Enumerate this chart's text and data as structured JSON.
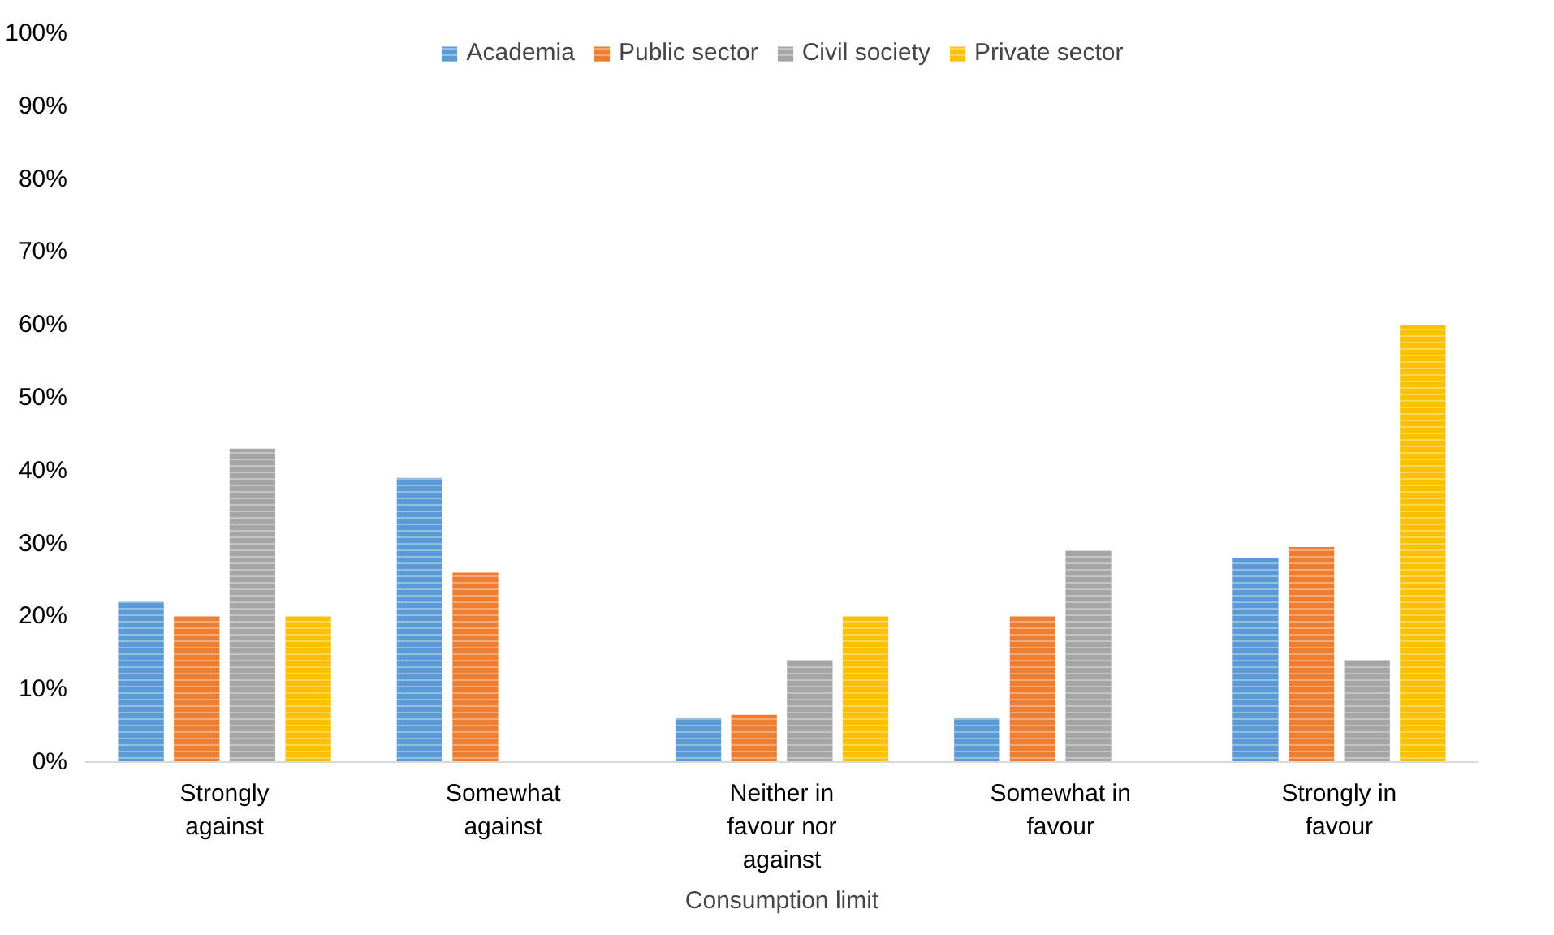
{
  "chart_data": {
    "type": "bar",
    "xlabel": "Consumption limit",
    "categories": [
      "Strongly against",
      "Somewhat against",
      "Neither in favour nor against",
      "Somewhat in favour",
      "Strongly in favour"
    ],
    "series": [
      {
        "name": "Academia",
        "color": "#5b9bd5",
        "values": [
          22,
          39,
          6,
          6,
          28
        ]
      },
      {
        "name": "Public sector",
        "color": "#ed7d31",
        "values": [
          20,
          26,
          6.5,
          20,
          29.5
        ]
      },
      {
        "name": "Civil society",
        "color": "#a5a5a5",
        "values": [
          43,
          0,
          14,
          29,
          14
        ]
      },
      {
        "name": "Private sector",
        "color": "#ffc000",
        "values": [
          20,
          0,
          20,
          0,
          60
        ]
      }
    ],
    "ylim": [
      0,
      100
    ],
    "yticks": [
      {
        "value": 0,
        "label": "0%"
      },
      {
        "value": 10,
        "label": "10%"
      },
      {
        "value": 20,
        "label": "20%"
      },
      {
        "value": 30,
        "label": "30%"
      },
      {
        "value": 40,
        "label": "40%"
      },
      {
        "value": 50,
        "label": "50%"
      },
      {
        "value": 60,
        "label": "60%"
      },
      {
        "value": 70,
        "label": "70%"
      },
      {
        "value": 80,
        "label": "80%"
      },
      {
        "value": 90,
        "label": "90%"
      },
      {
        "value": 100,
        "label": "100%"
      }
    ],
    "legend": "top",
    "grid": false
  }
}
